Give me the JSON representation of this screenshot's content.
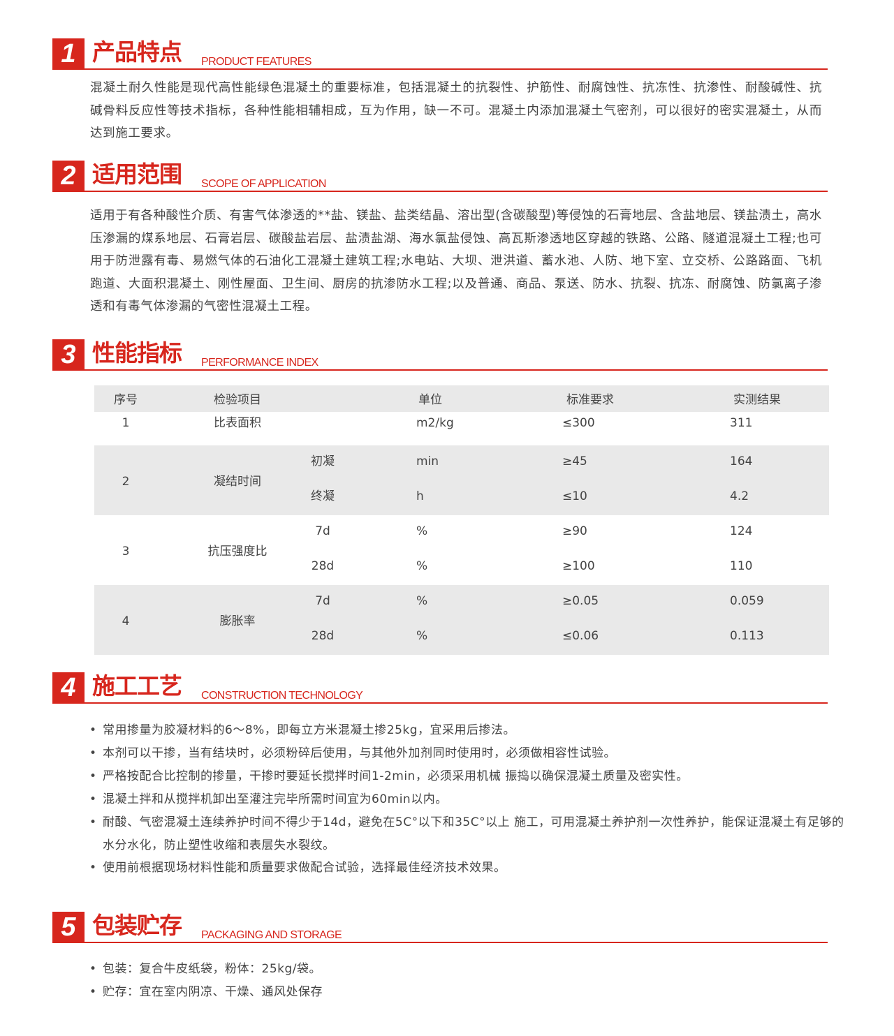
{
  "sections": [
    {
      "number": "1",
      "title": "产品特点",
      "subtitle": "PRODUCT FEATURES",
      "paragraphs": [
        "混凝土耐久性能是现代高性能绿色混凝土的重要标准，包括混凝土的抗裂性、护筋性、耐腐蚀性、抗冻性、抗渗性、耐酸碱性、抗碱骨料反应性等技术指标，各种性能相辅相成，互为作用，缺一不可。混凝土内添加混凝土气密剂，可以很好的密实混凝土，从而达到施工要求。"
      ]
    },
    {
      "number": "2",
      "title": "适用范围",
      "subtitle": "SCOPE OF APPLICATION",
      "paragraphs": [
        "适用于有各种酸性介质、有害气体渗透的**盐、镁盐、盐类结晶、溶出型(含碳酸型)等侵蚀的石膏地层、含盐地层、镁盐渍土，高水压渗漏的煤系地层、石膏岩层、碳酸盐岩层、盐渍盐湖、海水氯盐侵蚀、高瓦斯渗透地区穿越的铁路、公路、隧道混凝土工程;也可用于防泄露有毒、易燃气体的石油化工混凝土建筑工程;水电站、大坝、泄洪道、蓄水池、人防、地下室、立交桥、公路路面、飞机跑道、大面积混凝土、刚性屋面、卫生间、厨房的抗渗防水工程;以及普通、商品、泵送、防水、抗裂、抗冻、耐腐蚀、防氯离子渗透和有毒气体渗漏的气密性混凝土工程。"
      ]
    },
    {
      "number": "3",
      "title": "性能指标",
      "subtitle": "PERFORMANCE INDEX",
      "table": {
        "header": [
          "序号",
          "检验项目",
          "单位",
          "标准要求",
          "实测结果"
        ],
        "rows": [
          {
            "no": "1",
            "item": "比表面积",
            "lines": [
              {
                "unit": "m2/kg",
                "standard": "≤300",
                "result": "311"
              }
            ]
          },
          {
            "no": "2",
            "item": "凝结时间",
            "lines": [
              {
                "sub": "初凝",
                "unit": "min",
                "standard": "≥45",
                "result": "164"
              },
              {
                "sub": "终凝",
                "unit": "h",
                "standard": "≤10",
                "result": "4.2"
              }
            ]
          },
          {
            "no": "3",
            "item": "抗压强度比",
            "lines": [
              {
                "sub": "7d",
                "unit": "%",
                "standard": "≥90",
                "result": "124"
              },
              {
                "sub": "28d",
                "unit": "%",
                "standard": "≥100",
                "result": "110"
              }
            ]
          },
          {
            "no": "4",
            "item": "膨胀率",
            "lines": [
              {
                "sub": "7d",
                "unit": "%",
                "standard": "≥0.05",
                "result": "0.059"
              },
              {
                "sub": "28d",
                "unit": "%",
                "standard": "≤0.06",
                "result": "0.113"
              }
            ]
          }
        ]
      }
    },
    {
      "number": "4",
      "title": "施工工艺",
      "subtitle": "CONSTRUCTION TECHNOLOGY",
      "bullets": [
        "常用掺量为胶凝材料的6～8%，即每立方米混凝土掺25kg，宜采用后掺法。",
        "本剂可以干掺，当有结块时，必须粉碎后使用，与其他外加剂同时使用时，必须做相容性试验。",
        "严格按配合比控制的掺量，干掺时要延长搅拌时间1-2min，必须采用机械 振捣以确保混凝土质量及密实性。",
        "混凝土拌和从搅拌机卸出至灌注完毕所需时间宜为60min以内。",
        "耐酸、气密混凝土连续养护时间不得少于14d，避免在5C°以下和35C°以上 施工，可用混凝土养护剂一次性养护，能保证混凝土有足够的水分水化，防止塑性收缩和表层失水裂纹。",
        "使用前根据现场材料性能和质量要求做配合试验，选择最佳经济技术效果。"
      ]
    },
    {
      "number": "5",
      "title": "包装贮存",
      "subtitle": "PACKAGING AND STORAGE",
      "bullets": [
        "包装：复合牛皮纸袋，粉体：25kg/袋。",
        "贮存：宜在室内阴凉、干燥、通风处保存"
      ]
    }
  ]
}
